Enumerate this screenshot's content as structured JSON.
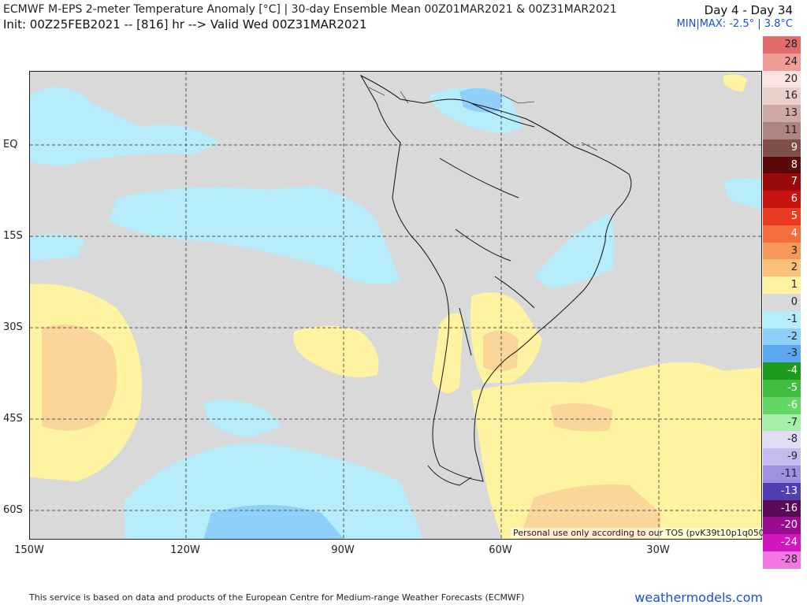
{
  "header": {
    "title": "ECMWF M-EPS 2-meter Temperature Anomaly [°C] | 30-day Ensemble Mean 00Z01MAR2021 & 00Z31MAR2021",
    "init": "Init: 00Z25FEB2021 -- [816] hr --> Valid Wed 00Z31MAR2021",
    "period": "Day 4 - Day 34",
    "minmax": "MIN|MAX: -2.5° | 3.8°C"
  },
  "axes": {
    "lat_labels": [
      "EQ",
      "15S",
      "30S",
      "45S",
      "60S"
    ],
    "lon_labels": [
      "150W",
      "120W",
      "90W",
      "60W",
      "30W"
    ]
  },
  "legend": {
    "items": [
      {
        "label": "28",
        "color": "#e26b6b"
      },
      {
        "label": "24",
        "color": "#ef9d97"
      },
      {
        "label": "20",
        "color": "#fde3df"
      },
      {
        "label": "16",
        "color": "#ead0cb"
      },
      {
        "label": "13",
        "color": "#cfa9a4"
      },
      {
        "label": "11",
        "color": "#ad847f"
      },
      {
        "label": "9",
        "color": "#7d4e4a"
      },
      {
        "label": "8",
        "color": "#5a0808"
      },
      {
        "label": "7",
        "color": "#9b0a0a"
      },
      {
        "label": "6",
        "color": "#c8140e"
      },
      {
        "label": "5",
        "color": "#ea3a22"
      },
      {
        "label": "4",
        "color": "#f46d3c"
      },
      {
        "label": "3",
        "color": "#f6975a"
      },
      {
        "label": "2",
        "color": "#fbbf7c"
      },
      {
        "label": "1",
        "color": "#fdf3a0"
      },
      {
        "label": "0",
        "color": "#d9d9d9"
      },
      {
        "label": "-1",
        "color": "#b7ecfb"
      },
      {
        "label": "-2",
        "color": "#8fd0fb"
      },
      {
        "label": "-3",
        "color": "#5aa8f2"
      },
      {
        "label": "-4",
        "color": "#1c9b1c"
      },
      {
        "label": "-5",
        "color": "#3ebd3e"
      },
      {
        "label": "-6",
        "color": "#63d763"
      },
      {
        "label": "-7",
        "color": "#a8eea8"
      },
      {
        "label": "-8",
        "color": "#e0def6"
      },
      {
        "label": "-9",
        "color": "#c5bbee"
      },
      {
        "label": "-11",
        "color": "#9d91e2"
      },
      {
        "label": "-13",
        "color": "#4f3fb3"
      },
      {
        "label": "-16",
        "color": "#5a0a57"
      },
      {
        "label": "-20",
        "color": "#9a0a91"
      },
      {
        "label": "-24",
        "color": "#d317bf"
      },
      {
        "label": "-28",
        "color": "#f477e3"
      }
    ]
  },
  "tos_note": "Personal use only according to our TOS (pvK39t10p1q050)",
  "footer": {
    "note": "This service is based on data and products of the European Centre for Medium-range Weather Forecasts (ECMWF)",
    "brand": "weathermodels.com"
  }
}
